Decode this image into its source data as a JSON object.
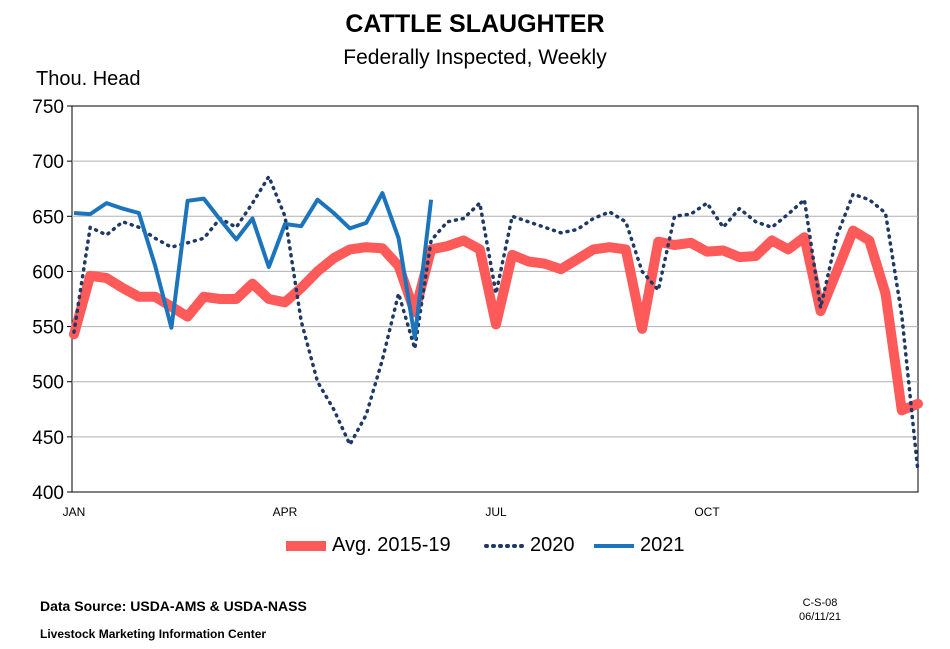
{
  "chart_data": {
    "type": "line",
    "title": "CATTLE SLAUGHTER",
    "subtitle": "Federally Inspected, Weekly",
    "ylabel": "Thou. Head",
    "xlabel": "",
    "ylim": [
      400,
      750
    ],
    "yticks": [
      400,
      450,
      500,
      550,
      600,
      650,
      700,
      750
    ],
    "xlim": [
      1,
      53
    ],
    "xticks": [
      {
        "label": "JAN",
        "week": 1
      },
      {
        "label": "APR",
        "week": 14
      },
      {
        "label": "JUL",
        "week": 27
      },
      {
        "label": "OCT",
        "week": 40
      }
    ],
    "grid": true,
    "series": [
      {
        "name": "Avg. 2015-19",
        "color": "#ff5a5a",
        "style": "thick",
        "x": [
          1,
          2,
          3,
          4,
          5,
          6,
          7,
          8,
          9,
          10,
          11,
          12,
          13,
          14,
          15,
          16,
          17,
          18,
          19,
          20,
          21,
          22,
          23,
          24,
          25,
          26,
          27,
          28,
          29,
          30,
          31,
          32,
          33,
          34,
          35,
          36,
          37,
          38,
          39,
          40,
          41,
          42,
          43,
          44,
          45,
          46,
          47,
          48,
          49,
          50,
          51,
          52,
          53
        ],
        "values": [
          543,
          596,
          594,
          585,
          577,
          577,
          568,
          559,
          577,
          575,
          575,
          589,
          575,
          572,
          585,
          600,
          612,
          620,
          622,
          621,
          605,
          563,
          620,
          623,
          628,
          620,
          552,
          615,
          609,
          607,
          602,
          611,
          620,
          622,
          620,
          548,
          627,
          624,
          626,
          618,
          619,
          613,
          614,
          628,
          620,
          631,
          564,
          600,
          637,
          628,
          580,
          474,
          480
        ]
      },
      {
        "name": "2020",
        "color": "#1f3864",
        "style": "dotted",
        "x": [
          1,
          2,
          3,
          4,
          5,
          6,
          7,
          8,
          9,
          10,
          11,
          12,
          13,
          14,
          15,
          16,
          17,
          18,
          19,
          20,
          21,
          22,
          23,
          24,
          25,
          26,
          27,
          28,
          29,
          30,
          31,
          32,
          33,
          34,
          35,
          36,
          37,
          38,
          39,
          40,
          41,
          42,
          43,
          44,
          45,
          46,
          47,
          48,
          49,
          50,
          51,
          52,
          53
        ],
        "values": [
          545,
          640,
          633,
          645,
          640,
          630,
          622,
          626,
          630,
          648,
          640,
          662,
          686,
          650,
          555,
          500,
          475,
          443,
          470,
          520,
          580,
          530,
          628,
          645,
          648,
          662,
          580,
          650,
          645,
          640,
          635,
          638,
          648,
          654,
          645,
          600,
          583,
          650,
          652,
          662,
          640,
          657,
          645,
          640,
          652,
          665,
          567,
          632,
          670,
          665,
          653,
          560,
          418
        ]
      },
      {
        "name": "2021",
        "color": "#1c75bc",
        "style": "solid",
        "x": [
          1,
          2,
          3,
          4,
          5,
          6,
          7,
          8,
          9,
          10,
          11,
          12,
          13,
          14,
          15,
          16,
          17,
          18,
          19,
          20,
          21,
          22,
          23
        ],
        "values": [
          653,
          652,
          662,
          657,
          653,
          605,
          549,
          664,
          666,
          647,
          629,
          648,
          604,
          643,
          641,
          665,
          653,
          639,
          644,
          671,
          630,
          540,
          665
        ]
      }
    ]
  },
  "legend": {
    "avg": "Avg. 2015-19",
    "y2020": "2020",
    "y2021": "2021"
  },
  "footer": {
    "source": "Data Source:  USDA-AMS & USDA-NASS",
    "center": "Livestock Marketing Information Center",
    "code": "C-S-08",
    "date": "06/11/21"
  }
}
